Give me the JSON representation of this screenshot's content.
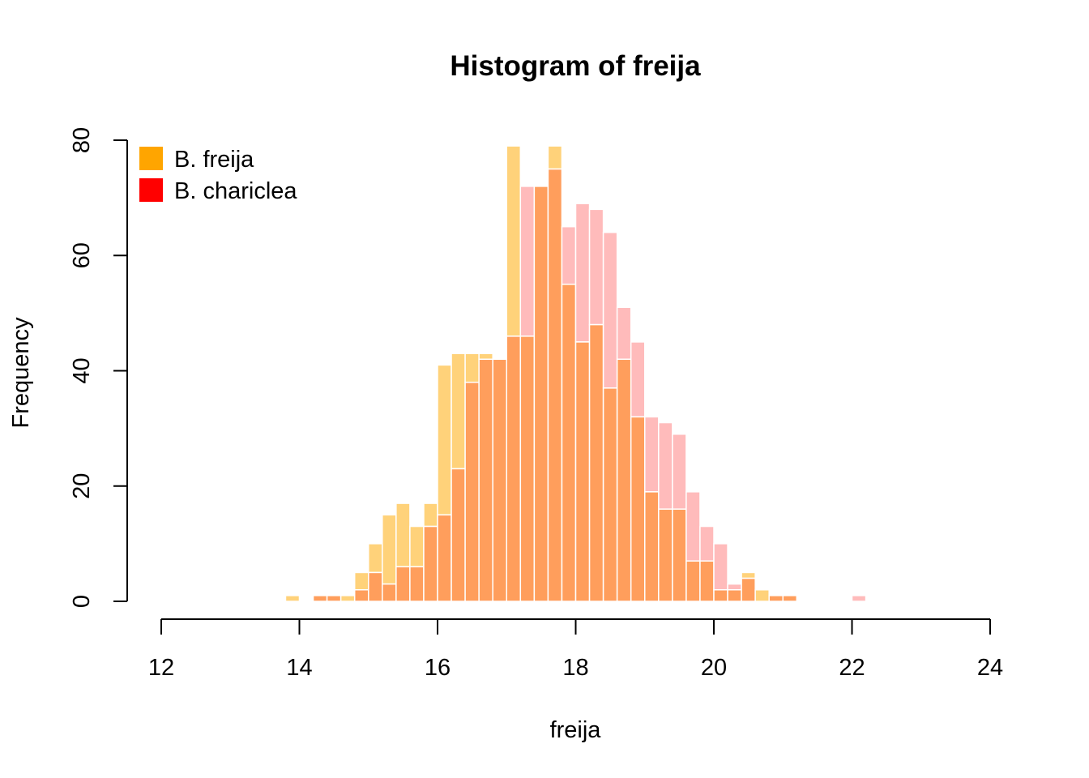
{
  "chart_data": {
    "type": "bar",
    "title": "Histogram of freija",
    "xlabel": "freija",
    "ylabel": "Frequency",
    "xlim": [
      12,
      24
    ],
    "ylim": [
      0,
      80
    ],
    "x_ticks": [
      "12",
      "14",
      "16",
      "18",
      "20",
      "22",
      "24"
    ],
    "y_ticks": [
      "0",
      "20",
      "40",
      "60",
      "80"
    ],
    "bin_width": 0.2,
    "bin_starts": [
      13.8,
      14.0,
      14.2,
      14.4,
      14.6,
      14.8,
      15.0,
      15.2,
      15.4,
      15.6,
      15.8,
      16.0,
      16.2,
      16.4,
      16.6,
      16.8,
      17.0,
      17.2,
      17.4,
      17.6,
      17.8,
      18.0,
      18.2,
      18.4,
      18.6,
      18.8,
      19.0,
      19.2,
      19.4,
      19.6,
      19.8,
      20.0,
      20.2,
      20.4,
      20.6,
      20.8,
      21.0,
      21.2,
      21.4,
      21.6,
      21.8,
      22.0
    ],
    "legend": {
      "position": "top-left",
      "entries": [
        {
          "label": "B. freija",
          "color": "#FFA500"
        },
        {
          "label": "B. chariclea",
          "color": "#FF0000"
        }
      ]
    },
    "series": [
      {
        "name": "B. freija",
        "color": "#FFD27A",
        "values": [
          1,
          0,
          1,
          1,
          1,
          5,
          10,
          15,
          17,
          13,
          17,
          41,
          43,
          43,
          43,
          42,
          79,
          46,
          72,
          79,
          55,
          45,
          48,
          37,
          42,
          32,
          19,
          16,
          16,
          7,
          7,
          2,
          2,
          5,
          2,
          1,
          1,
          0,
          0,
          0,
          0,
          0
        ]
      },
      {
        "name": "B. chariclea",
        "color": "#FFBBBB",
        "values": [
          0,
          0,
          1,
          1,
          0,
          2,
          5,
          3,
          6,
          6,
          13,
          15,
          23,
          38,
          42,
          42,
          46,
          72,
          72,
          75,
          65,
          69,
          68,
          64,
          51,
          45,
          32,
          31,
          29,
          19,
          13,
          10,
          3,
          4,
          0,
          1,
          1,
          0,
          0,
          0,
          0,
          1
        ]
      }
    ],
    "overlap_color": "#FF9E5C"
  }
}
